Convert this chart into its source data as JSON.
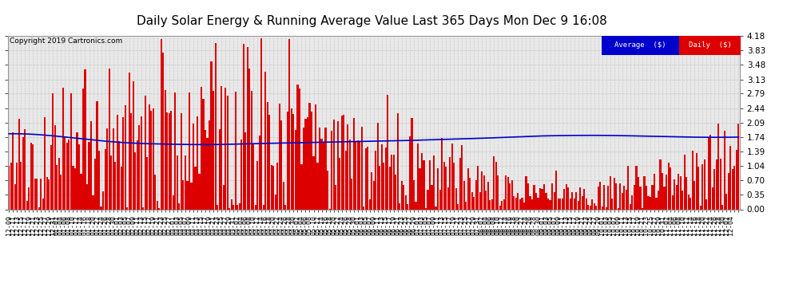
{
  "title": "Daily Solar Energy & Running Average Value Last 365 Days Mon Dec 9 16:08",
  "copyright": "Copyright 2019 Cartronics.com",
  "background_color": "#ffffff",
  "plot_bg_color": "#e8e8e8",
  "bar_color": "#dd0000",
  "line_color": "#0000cc",
  "ylim": [
    0.0,
    4.18
  ],
  "yticks": [
    0.0,
    0.35,
    0.7,
    1.04,
    1.39,
    1.74,
    2.09,
    2.44,
    2.79,
    3.13,
    3.48,
    3.83,
    4.18
  ],
  "legend_avg_bg": "#0000cc",
  "legend_daily_bg": "#dd0000",
  "legend_text_color": "#ffffff",
  "title_fontsize": 11,
  "xlabel_fontsize": 6,
  "ylabel_fontsize": 7.5,
  "n_bars": 365,
  "grid_color": "#cccccc",
  "grid_linestyle": "--",
  "x_labels": [
    "12-09",
    "12-11",
    "12-13",
    "12-15",
    "12-17",
    "12-19",
    "12-21",
    "12-23",
    "12-25",
    "12-27",
    "12-29",
    "12-31",
    "01-02",
    "01-04",
    "01-06",
    "01-08",
    "01-10",
    "01-12",
    "01-14",
    "01-16",
    "01-18",
    "01-20",
    "01-22",
    "01-24",
    "01-26",
    "01-28",
    "01-30",
    "02-01",
    "02-03",
    "02-05",
    "02-07",
    "02-09",
    "02-11",
    "02-13",
    "02-15",
    "02-17",
    "02-19",
    "02-21",
    "02-23",
    "02-25",
    "02-27",
    "03-01",
    "03-03",
    "03-05",
    "03-07",
    "03-09",
    "03-11",
    "03-13",
    "03-15",
    "03-17",
    "03-19",
    "03-21",
    "03-23",
    "03-25",
    "03-27",
    "03-29",
    "03-31",
    "04-02",
    "04-04",
    "04-06",
    "04-08",
    "04-10",
    "04-12",
    "04-14",
    "04-16",
    "04-18",
    "04-20",
    "04-22",
    "04-24",
    "04-26",
    "04-28",
    "04-30",
    "05-02",
    "05-04",
    "05-06",
    "05-08",
    "05-10",
    "05-12",
    "05-14",
    "05-16",
    "05-18",
    "05-20",
    "05-22",
    "05-24",
    "05-26",
    "05-28",
    "05-30",
    "06-01",
    "06-03",
    "06-05",
    "06-07",
    "06-09",
    "06-11",
    "06-13",
    "06-15",
    "06-17",
    "06-19",
    "06-21",
    "06-23",
    "06-25",
    "06-27",
    "06-29",
    "07-01",
    "07-03",
    "07-05",
    "07-07",
    "07-09",
    "07-11",
    "07-13",
    "07-15",
    "07-17",
    "07-19",
    "07-21",
    "07-23",
    "07-25",
    "07-27",
    "07-29",
    "07-31",
    "08-02",
    "08-04",
    "08-06",
    "08-08",
    "08-10",
    "08-12",
    "08-14",
    "08-16",
    "08-18",
    "08-20",
    "08-22",
    "08-24",
    "08-26",
    "08-28",
    "08-30",
    "09-01",
    "09-03",
    "09-05",
    "09-07",
    "09-09",
    "09-11",
    "09-13",
    "09-15",
    "09-17",
    "09-19",
    "09-21",
    "09-23",
    "09-25",
    "09-27",
    "09-29",
    "10-01",
    "10-03",
    "10-05",
    "10-07",
    "10-09",
    "10-11",
    "10-13",
    "10-15",
    "10-17",
    "10-19",
    "10-21",
    "10-23",
    "10-25",
    "10-27",
    "10-29",
    "10-31",
    "11-02",
    "11-04",
    "11-06",
    "11-08",
    "11-10",
    "11-12",
    "11-14",
    "11-16",
    "11-18",
    "11-20",
    "11-22",
    "11-24",
    "11-26",
    "11-28",
    "11-30",
    "12-02",
    "12-04"
  ],
  "avg_points": [
    [
      0,
      1.82
    ],
    [
      20,
      1.78
    ],
    [
      40,
      1.68
    ],
    [
      60,
      1.6
    ],
    [
      80,
      1.57
    ],
    [
      100,
      1.56
    ],
    [
      120,
      1.58
    ],
    [
      140,
      1.6
    ],
    [
      160,
      1.62
    ],
    [
      180,
      1.64
    ],
    [
      200,
      1.66
    ],
    [
      220,
      1.69
    ],
    [
      240,
      1.72
    ],
    [
      260,
      1.76
    ],
    [
      280,
      1.78
    ],
    [
      300,
      1.78
    ],
    [
      320,
      1.76
    ],
    [
      340,
      1.74
    ],
    [
      364,
      1.74
    ]
  ]
}
